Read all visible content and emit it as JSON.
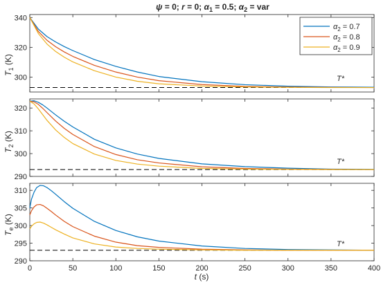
{
  "figure_title": "ψ = 0; r = 0; α₁ = 0.5; α₂ = var",
  "title_parts": {
    "psi": "ψ",
    "eq0": " = 0; ",
    "r": "r",
    "eq1": " = 0; ",
    "alpha": "α",
    "sub1": "1",
    "eq2": " = 0.5; ",
    "sub2": "2",
    "var": " = var"
  },
  "colors": {
    "alpha_0_7": "#0072BD",
    "alpha_0_8": "#D95319",
    "alpha_0_9": "#EDB120",
    "reference": "#000000"
  },
  "chart_data": [
    {
      "type": "line",
      "panel": "top",
      "ylabel": "T₁ (K)",
      "ylabel_main": "T",
      "ylabel_sub": "1",
      "ylabel_unit": " (K)",
      "xlim": [
        0,
        400
      ],
      "ylim": [
        290,
        342
      ],
      "yticks": [
        300,
        320,
        340
      ],
      "xticks": [
        0,
        50,
        100,
        150,
        200,
        250,
        300,
        350,
        400
      ],
      "reference_label": "T*",
      "reference_value": 293,
      "legend": {
        "position": "top-right",
        "entries": [
          "α₂ = 0.7",
          "α₂ = 0.8",
          "α₂ = 0.9"
        ],
        "sub": "2",
        "values": [
          " = 0.7",
          " = 0.8",
          " = 0.9"
        ]
      },
      "series": [
        {
          "name": "α₂ = 0.7",
          "color": "#0072BD",
          "x": [
            0,
            10,
            20,
            30,
            40,
            50,
            75,
            100,
            125,
            150,
            200,
            250,
            300,
            350,
            400
          ],
          "y": [
            340,
            332.2,
            327.2,
            323.6,
            320.5,
            317.8,
            311.8,
            307.2,
            303.4,
            300.4,
            296.9,
            294.9,
            293.9,
            293.4,
            293.2
          ]
        },
        {
          "name": "α₂ = 0.8",
          "color": "#D95319",
          "x": [
            0,
            10,
            20,
            30,
            40,
            50,
            75,
            100,
            125,
            150,
            200,
            250,
            300,
            350,
            400
          ],
          "y": [
            340,
            330.6,
            324.7,
            320.4,
            316.9,
            313.9,
            307.9,
            303.4,
            300.0,
            297.6,
            295.0,
            293.8,
            293.3,
            293.1,
            293.0
          ]
        },
        {
          "name": "α₂ = 0.9",
          "color": "#EDB120",
          "x": [
            0,
            10,
            20,
            30,
            40,
            50,
            75,
            100,
            125,
            150,
            200,
            250,
            300,
            350,
            400
          ],
          "y": [
            340,
            329.2,
            322.2,
            317.2,
            313.4,
            310.2,
            304.3,
            300.0,
            297.2,
            295.5,
            294.0,
            293.4,
            293.1,
            293.0,
            293.0
          ]
        }
      ]
    },
    {
      "type": "line",
      "panel": "middle",
      "ylabel": "T₂ (K)",
      "ylabel_main": "T",
      "ylabel_sub": "2",
      "ylabel_unit": " (K)",
      "xlim": [
        0,
        400
      ],
      "ylim": [
        290,
        324
      ],
      "yticks": [
        290,
        300,
        310,
        320
      ],
      "xticks": [
        0,
        50,
        100,
        150,
        200,
        250,
        300,
        350,
        400
      ],
      "reference_label": "T*",
      "reference_value": 293,
      "series": [
        {
          "name": "α₂ = 0.7",
          "color": "#0072BD",
          "x": [
            0,
            5,
            10,
            15,
            20,
            30,
            40,
            50,
            75,
            100,
            125,
            150,
            200,
            250,
            300,
            350,
            400
          ],
          "y": [
            323,
            323.2,
            322.5,
            321.4,
            320.0,
            317.0,
            314.2,
            311.7,
            306.3,
            302.5,
            299.8,
            297.9,
            295.5,
            294.3,
            293.6,
            293.2,
            293.1
          ]
        },
        {
          "name": "α₂ = 0.8",
          "color": "#D95319",
          "x": [
            0,
            5,
            10,
            15,
            20,
            30,
            40,
            50,
            75,
            100,
            125,
            150,
            200,
            250,
            300,
            350,
            400
          ],
          "y": [
            323,
            322.7,
            321.6,
            319.9,
            318.0,
            314.3,
            311.1,
            308.4,
            303.1,
            299.6,
            297.3,
            295.9,
            294.2,
            293.5,
            293.2,
            293.1,
            293.0
          ]
        },
        {
          "name": "α₂ = 0.9",
          "color": "#EDB120",
          "x": [
            0,
            5,
            10,
            15,
            20,
            30,
            40,
            50,
            75,
            100,
            125,
            150,
            200,
            250,
            300,
            350,
            400
          ],
          "y": [
            323,
            321.8,
            319.6,
            317.1,
            314.6,
            310.4,
            307.1,
            304.4,
            299.8,
            297.0,
            295.4,
            294.5,
            293.5,
            293.2,
            293.1,
            293.0,
            293.0
          ]
        }
      ]
    },
    {
      "type": "line",
      "panel": "bottom",
      "xlabel": "t (s)",
      "xlabel_main": "t",
      "xlabel_unit": " (s)",
      "ylabel": "Tₑ (K)",
      "ylabel_main": "T",
      "ylabel_sub": "e",
      "ylabel_unit": " (K)",
      "xlim": [
        0,
        400
      ],
      "ylim": [
        290,
        312
      ],
      "yticks": [
        290,
        295,
        300,
        305,
        310
      ],
      "xticks": [
        0,
        50,
        100,
        150,
        200,
        250,
        300,
        350,
        400
      ],
      "reference_label": "T*",
      "reference_value": 293,
      "series": [
        {
          "name": "α₂ = 0.7",
          "color": "#0072BD",
          "x": [
            0,
            2,
            5,
            8,
            12,
            16,
            20,
            25,
            30,
            40,
            50,
            75,
            100,
            125,
            150,
            200,
            250,
            300,
            350,
            400
          ],
          "y": [
            305,
            307.5,
            309.5,
            310.8,
            311.4,
            311.3,
            310.8,
            309.9,
            308.9,
            306.8,
            304.9,
            301.2,
            298.6,
            296.8,
            295.6,
            294.2,
            293.5,
            293.2,
            293.1,
            293.0
          ]
        },
        {
          "name": "α₂ = 0.8",
          "color": "#D95319",
          "x": [
            0,
            2,
            5,
            8,
            12,
            16,
            20,
            25,
            30,
            40,
            50,
            75,
            100,
            125,
            150,
            200,
            250,
            300,
            350,
            400
          ],
          "y": [
            303,
            304.2,
            305.3,
            305.9,
            306.0,
            305.6,
            304.9,
            304.0,
            303.0,
            301.2,
            299.7,
            297.0,
            295.3,
            294.3,
            293.8,
            293.3,
            293.1,
            293.0,
            293.0,
            293.0
          ]
        },
        {
          "name": "α₂ = 0.9",
          "color": "#EDB120",
          "x": [
            0,
            2,
            5,
            8,
            12,
            16,
            20,
            25,
            30,
            40,
            50,
            75,
            100,
            125,
            150,
            200,
            250,
            300,
            350,
            400
          ],
          "y": [
            299,
            299.8,
            300.5,
            300.9,
            301.0,
            300.7,
            300.2,
            299.5,
            298.8,
            297.6,
            296.5,
            294.8,
            293.9,
            293.5,
            293.3,
            293.1,
            293.0,
            293.0,
            293.0,
            293.0
          ]
        }
      ]
    }
  ]
}
